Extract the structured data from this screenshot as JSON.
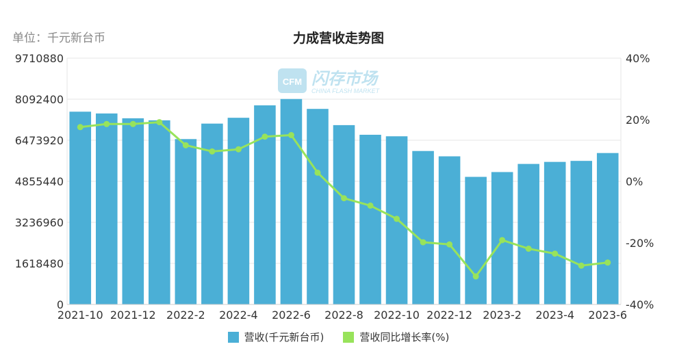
{
  "header": {
    "unit_label": "单位：千元新台币",
    "title": "力成营收走势图"
  },
  "colors": {
    "bar": "#4bafd6",
    "line": "#98e35b",
    "grid": "#e6e6e6",
    "axis_text": "#333333"
  },
  "chart_data": {
    "type": "bar",
    "title": "力成营收走势图",
    "categories": [
      "2021-10",
      "2021-11",
      "2021-12",
      "2022-1",
      "2022-2",
      "2022-3",
      "2022-4",
      "2022-5",
      "2022-6",
      "2022-7",
      "2022-8",
      "2022-9",
      "2022-10",
      "2022-11",
      "2022-12",
      "2023-1",
      "2023-2",
      "2023-3",
      "2023-4",
      "2023-5",
      "2023-6"
    ],
    "x_tick_labels": [
      "2021-10",
      "2021-12",
      "2022-2",
      "2022-4",
      "2022-6",
      "2022-8",
      "2022-10",
      "2022-12",
      "2023-2",
      "2023-4",
      "2023-6"
    ],
    "x_tick_every": 2,
    "y_left": {
      "ticks": [
        "0",
        "1618480",
        "3236960",
        "4855440",
        "6473920",
        "8092400",
        "9710880"
      ],
      "min": 0,
      "max": 9710880
    },
    "y_right": {
      "ticks": [
        "-40%",
        "-20%",
        "0%",
        "20%",
        "40%"
      ],
      "min": -40,
      "max": 40
    },
    "grid": true,
    "legend_position": "bottom",
    "series": [
      {
        "name": "营收(千元新台币)",
        "type": "bar",
        "axis": "left",
        "values": [
          7600000,
          7530000,
          7340000,
          7260000,
          6520000,
          7130000,
          7360000,
          7850000,
          8100000,
          7710000,
          7070000,
          6690000,
          6630000,
          6050000,
          5840000,
          5030000,
          5220000,
          5540000,
          5620000,
          5660000,
          5970000
        ]
      },
      {
        "name": "营收同比增长率(%)",
        "type": "line",
        "axis": "right",
        "values": [
          17.6,
          18.6,
          18.6,
          19.2,
          11.7,
          9.7,
          10.4,
          14.5,
          15.0,
          2.8,
          -5.5,
          -7.9,
          -12.2,
          -19.8,
          -20.5,
          -30.9,
          -19.1,
          -21.9,
          -23.5,
          -27.4,
          -26.4
        ]
      }
    ]
  },
  "watermark": {
    "badge": "CFM",
    "name": "闪存市场",
    "sub": "CHINA FLASH MARKET"
  }
}
